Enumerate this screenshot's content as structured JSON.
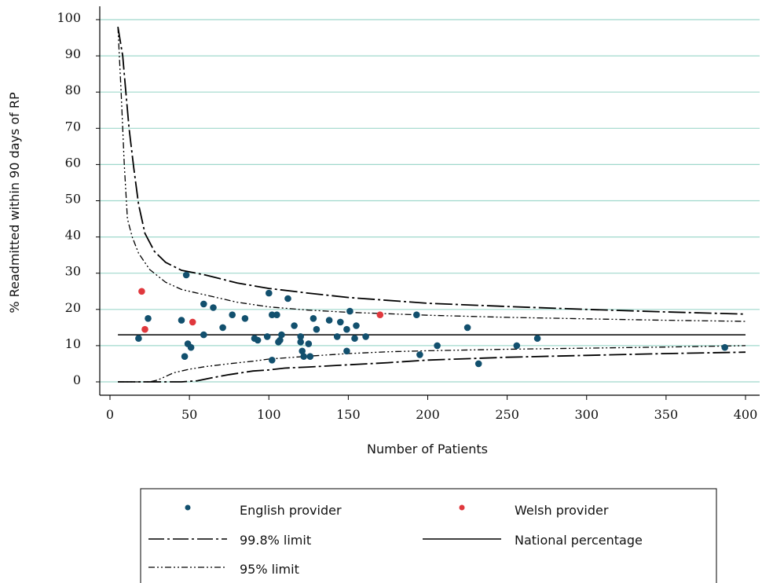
{
  "chart_data": {
    "type": "scatter",
    "title": "",
    "xlabel": "Number of Patients",
    "ylabel": "% Readmitted within 90 days of RP",
    "xlim": [
      0,
      405
    ],
    "ylim": [
      -3,
      101
    ],
    "x_ticks": [
      0,
      50,
      100,
      150,
      200,
      250,
      300,
      350,
      400
    ],
    "y_ticks": [
      0,
      10,
      20,
      30,
      40,
      50,
      60,
      70,
      80,
      90,
      100
    ],
    "grid": "horizontal",
    "legend_position": "bottom",
    "colors": {
      "english": "#12506e",
      "welsh": "#e0383d",
      "grid": "#9fd8cc",
      "line": "#000000"
    },
    "national_percentage": 13,
    "series": [
      {
        "name": "English provider",
        "kind": "points",
        "color": "#12506e",
        "points": [
          [
            18,
            12
          ],
          [
            24,
            17.5
          ],
          [
            45,
            17
          ],
          [
            47,
            7
          ],
          [
            48,
            29.5
          ],
          [
            49,
            10.5
          ],
          [
            51,
            9.5
          ],
          [
            59,
            13
          ],
          [
            59,
            21.5
          ],
          [
            65,
            20.5
          ],
          [
            71,
            15
          ],
          [
            77,
            18.5
          ],
          [
            85,
            17.5
          ],
          [
            91,
            12
          ],
          [
            93,
            11.5
          ],
          [
            99,
            12.5
          ],
          [
            100,
            24.5
          ],
          [
            102,
            18.5
          ],
          [
            102,
            6
          ],
          [
            105,
            18.5
          ],
          [
            106,
            11
          ],
          [
            107,
            11.5
          ],
          [
            108,
            13
          ],
          [
            112,
            23
          ],
          [
            116,
            15.5
          ],
          [
            120,
            12.5
          ],
          [
            120,
            11
          ],
          [
            121,
            8.5
          ],
          [
            122,
            7
          ],
          [
            125,
            10.5
          ],
          [
            126,
            7
          ],
          [
            128,
            17.5
          ],
          [
            130,
            14.5
          ],
          [
            138,
            17
          ],
          [
            143,
            12.5
          ],
          [
            145,
            16.5
          ],
          [
            149,
            14.5
          ],
          [
            149,
            8.5
          ],
          [
            151,
            19.5
          ],
          [
            154,
            12
          ],
          [
            155,
            15.5
          ],
          [
            161,
            12.5
          ],
          [
            193,
            18.5
          ],
          [
            195,
            7.5
          ],
          [
            206,
            10
          ],
          [
            225,
            15
          ],
          [
            232,
            5
          ],
          [
            256,
            10
          ],
          [
            269,
            12
          ],
          [
            387,
            9.5
          ]
        ]
      },
      {
        "name": "Welsh provider",
        "kind": "points",
        "color": "#e0383d",
        "points": [
          [
            20,
            25
          ],
          [
            22,
            14.5
          ],
          [
            52,
            16.5
          ],
          [
            170,
            18.5
          ]
        ]
      },
      {
        "name": "99.8% limit",
        "kind": "line",
        "dash": "long-dash-dot",
        "upper": [
          [
            5,
            98
          ],
          [
            8,
            90
          ],
          [
            10,
            80
          ],
          [
            12,
            70
          ],
          [
            15,
            59
          ],
          [
            18,
            49
          ],
          [
            22,
            41
          ],
          [
            28,
            36
          ],
          [
            35,
            33
          ],
          [
            45,
            30.8
          ],
          [
            60,
            29.5
          ],
          [
            80,
            27.3
          ],
          [
            100,
            25.8
          ],
          [
            125,
            24.5
          ],
          [
            150,
            23.3
          ],
          [
            175,
            22.5
          ],
          [
            200,
            21.7
          ],
          [
            250,
            20.8
          ],
          [
            300,
            20
          ],
          [
            350,
            19.3
          ],
          [
            400,
            18.7
          ]
        ],
        "lower": [
          [
            5,
            0
          ],
          [
            45,
            0
          ],
          [
            55,
            0.3
          ],
          [
            65,
            1.2
          ],
          [
            75,
            2
          ],
          [
            90,
            3
          ],
          [
            100,
            3.3
          ],
          [
            110,
            3.8
          ],
          [
            125,
            4.1
          ],
          [
            150,
            4.7
          ],
          [
            175,
            5.3
          ],
          [
            200,
            6
          ],
          [
            250,
            6.8
          ],
          [
            300,
            7.3
          ],
          [
            350,
            7.8
          ],
          [
            400,
            8.2
          ]
        ]
      },
      {
        "name": "95% limit",
        "kind": "line",
        "dash": "dash-dot-dot",
        "upper": [
          [
            5,
            98
          ],
          [
            7,
            80
          ],
          [
            9,
            60
          ],
          [
            11,
            45
          ],
          [
            14,
            40
          ],
          [
            18,
            35.5
          ],
          [
            25,
            31
          ],
          [
            35,
            27.5
          ],
          [
            45,
            25.5
          ],
          [
            60,
            24
          ],
          [
            80,
            22
          ],
          [
            100,
            20.7
          ],
          [
            125,
            19.8
          ],
          [
            150,
            19.2
          ],
          [
            175,
            18.8
          ],
          [
            200,
            18.4
          ],
          [
            250,
            17.8
          ],
          [
            300,
            17.4
          ],
          [
            350,
            17
          ],
          [
            400,
            16.7
          ]
        ],
        "lower": [
          [
            5,
            0
          ],
          [
            25,
            0
          ],
          [
            30,
            0.5
          ],
          [
            40,
            2.5
          ],
          [
            50,
            3.5
          ],
          [
            60,
            4.2
          ],
          [
            75,
            5
          ],
          [
            90,
            5.7
          ],
          [
            100,
            6.3
          ],
          [
            125,
            7.1
          ],
          [
            150,
            7.8
          ],
          [
            175,
            8.3
          ],
          [
            200,
            8.6
          ],
          [
            250,
            9
          ],
          [
            300,
            9.3
          ],
          [
            350,
            9.6
          ],
          [
            400,
            10
          ]
        ]
      },
      {
        "name": "National percentage",
        "kind": "line",
        "dash": "solid",
        "points": [
          [
            5,
            13
          ],
          [
            400,
            13
          ]
        ]
      }
    ],
    "legend": [
      {
        "label": "English provider",
        "symbol": "dot-english"
      },
      {
        "label": "Welsh provider",
        "symbol": "dot-welsh"
      },
      {
        "label": "99.8% limit",
        "symbol": "line-998"
      },
      {
        "label": "National percentage",
        "symbol": "line-national"
      },
      {
        "label": "95% limit",
        "symbol": "line-95"
      }
    ]
  }
}
